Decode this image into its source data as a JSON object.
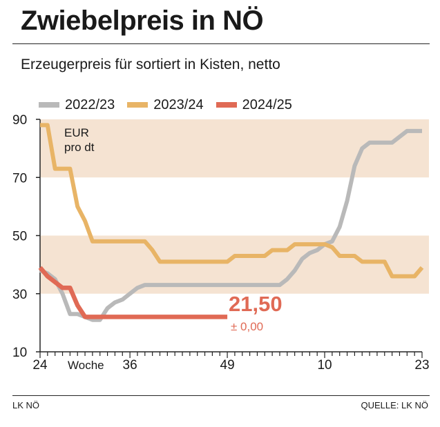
{
  "header": {
    "title": "Zwiebelpreis in NÖ",
    "subtitle": "Erzeugerpreis für sortiert in Kisten, netto"
  },
  "footer": {
    "credit": "LK NÖ",
    "source": "QUELLE: LK NÖ"
  },
  "colors": {
    "band": "#f5e3d2",
    "series_2022": "#b9b9b9",
    "series_2023": "#e8b466",
    "series_2024": "#e06a55",
    "axis": "#222222"
  },
  "chart_data": {
    "type": "line",
    "unit_label": [
      "EUR",
      "pro dt"
    ],
    "x_axis_label": "Woche",
    "x_ticks": [
      {
        "index": 0,
        "label": "24"
      },
      {
        "index": 12,
        "label": "36"
      },
      {
        "index": 25,
        "label": "49"
      },
      {
        "index": 38,
        "label": "10"
      },
      {
        "index": 51,
        "label": "23"
      }
    ],
    "x_range": [
      0,
      51
    ],
    "y_ticks": [
      10,
      30,
      50,
      70,
      90
    ],
    "ylim": [
      10,
      90
    ],
    "shaded_bands": [
      [
        30,
        50
      ],
      [
        70,
        90
      ]
    ],
    "series": [
      {
        "name": "2022/23",
        "color": "#b9b9b9",
        "values": [
          38,
          37,
          35,
          30,
          23,
          23,
          22,
          21,
          21,
          25,
          27,
          28,
          30,
          32,
          33,
          33,
          33,
          33,
          33,
          33,
          33,
          33,
          33,
          33,
          33,
          33,
          33,
          33,
          33,
          33,
          33,
          33,
          33,
          35,
          38,
          42,
          44,
          45,
          47,
          48,
          53,
          62,
          74,
          80,
          82,
          82,
          82,
          82,
          84,
          86,
          86,
          86
        ]
      },
      {
        "name": "2023/24",
        "color": "#e8b466",
        "values": [
          88,
          88,
          73,
          73,
          73,
          60,
          55,
          48,
          48,
          48,
          48,
          48,
          48,
          48,
          48,
          45,
          41,
          41,
          41,
          41,
          41,
          41,
          41,
          41,
          41,
          41,
          43,
          43,
          43,
          43,
          43,
          45,
          45,
          45,
          47,
          47,
          47,
          47,
          47,
          46,
          43,
          43,
          43,
          41,
          41,
          41,
          41,
          36,
          36,
          36,
          36,
          39
        ]
      },
      {
        "name": "2024/25",
        "color": "#e06a55",
        "values": [
          39,
          36,
          34,
          32,
          32,
          26,
          22,
          22,
          22,
          22,
          22,
          22,
          22,
          22,
          22,
          22,
          22,
          22,
          22,
          22,
          22,
          22,
          22,
          22,
          22,
          22
        ]
      }
    ],
    "annotation": {
      "value_label": "21,50",
      "change_label": "± 0,00"
    }
  }
}
